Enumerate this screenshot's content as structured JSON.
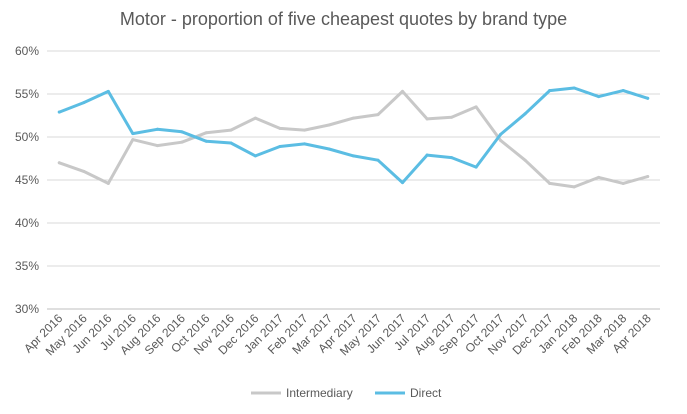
{
  "chart_data": {
    "type": "line",
    "title": "Motor - proportion of five cheapest quotes by brand type",
    "xlabel": "",
    "ylabel": "",
    "ylim": [
      0.3,
      0.6
    ],
    "yticks": [
      "30%",
      "35%",
      "40%",
      "45%",
      "50%",
      "55%",
      "60%"
    ],
    "ytick_values": [
      0.3,
      0.35,
      0.4,
      0.45,
      0.5,
      0.55,
      0.6
    ],
    "grid": "horizontal",
    "legend_position": "bottom",
    "categories": [
      "Apr 2016",
      "May 2016",
      "Jun 2016",
      "Jul 2016",
      "Aug 2016",
      "Sep 2016",
      "Oct 2016",
      "Nov 2016",
      "Dec 2016",
      "Jan 2017",
      "Feb 2017",
      "Mar 2017",
      "Apr 2017",
      "May 2017",
      "Jun 2017",
      "Jul 2017",
      "Aug 2017",
      "Sep 2017",
      "Oct 2017",
      "Nov 2017",
      "Dec 2017",
      "Jan 2018",
      "Feb 2018",
      "Mar 2018",
      "Apr 2018"
    ],
    "series": [
      {
        "name": "Intermediary",
        "color": "#c8c8c8",
        "values": [
          0.47,
          0.46,
          0.446,
          0.497,
          0.49,
          0.494,
          0.505,
          0.508,
          0.522,
          0.51,
          0.508,
          0.514,
          0.522,
          0.526,
          0.553,
          0.521,
          0.523,
          0.535,
          0.496,
          0.473,
          0.446,
          0.442,
          0.453,
          0.446,
          0.454
        ]
      },
      {
        "name": "Direct",
        "color": "#5bbde3",
        "values": [
          0.529,
          0.54,
          0.553,
          0.504,
          0.509,
          0.506,
          0.495,
          0.493,
          0.478,
          0.489,
          0.492,
          0.486,
          0.478,
          0.473,
          0.447,
          0.479,
          0.476,
          0.465,
          0.503,
          0.527,
          0.554,
          0.557,
          0.547,
          0.554,
          0.545
        ]
      }
    ]
  }
}
